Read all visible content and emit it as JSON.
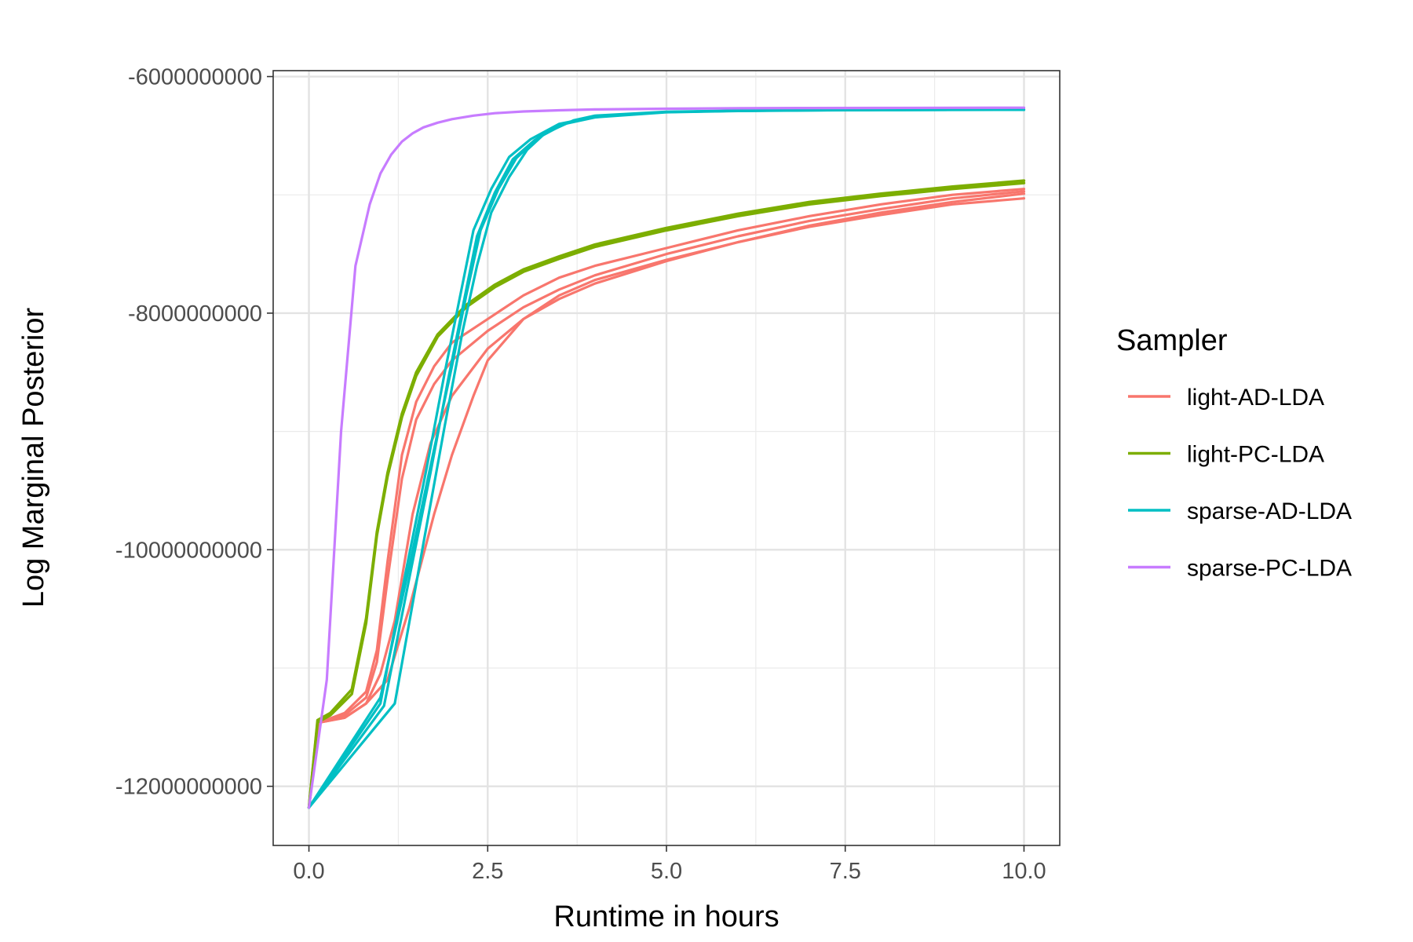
{
  "chart_data": {
    "type": "line",
    "xlabel": "Runtime in hours",
    "ylabel": "Log Marginal Posterior",
    "xlim": [
      -0.5,
      10.5
    ],
    "ylim": [
      -12500000000,
      -5950000000
    ],
    "x_ticks": [
      0.0,
      2.5,
      5.0,
      7.5,
      10.0
    ],
    "x_tick_labels": [
      "0.0",
      "2.5",
      "5.0",
      "7.5",
      "10.0"
    ],
    "y_ticks": [
      -12000000000,
      -10000000000,
      -8000000000,
      -6000000000
    ],
    "y_tick_labels": [
      "-12000000000",
      "-10000000000",
      "-8000000000",
      "-6000000000"
    ],
    "grid": true,
    "legend": {
      "title": "Sampler",
      "position": "right"
    },
    "series": [
      {
        "name": "light-AD-LDA",
        "color": "#F8766D",
        "runs": [
          {
            "x": [
              0,
              0.15,
              0.5,
              0.8,
              0.95,
              1.1,
              1.3,
              1.5,
              1.75,
              2.0,
              2.5,
              3.0,
              3.5,
              4.0,
              5.0,
              6.0,
              7.0,
              8.0,
              9.0,
              10.0
            ],
            "y": [
              -12180000000,
              -11460000000,
              -11380000000,
              -11200000000,
              -10850000000,
              -10100000000,
              -9200000000,
              -8750000000,
              -8450000000,
              -8250000000,
              -8050000000,
              -7850000000,
              -7700000000,
              -7600000000,
              -7450000000,
              -7300000000,
              -7180000000,
              -7080000000,
              -7000000000,
              -6950000000
            ]
          },
          {
            "x": [
              0,
              0.15,
              0.5,
              0.8,
              0.95,
              1.1,
              1.3,
              1.5,
              1.75,
              2.0,
              2.5,
              3.0,
              3.5,
              4.0,
              5.0,
              6.0,
              7.0,
              8.0,
              9.0,
              10.0
            ],
            "y": [
              -12180000000,
              -11460000000,
              -11400000000,
              -11250000000,
              -10950000000,
              -10250000000,
              -9400000000,
              -8900000000,
              -8600000000,
              -8400000000,
              -8150000000,
              -7950000000,
              -7800000000,
              -7680000000,
              -7500000000,
              -7350000000,
              -7220000000,
              -7120000000,
              -7030000000,
              -6970000000
            ]
          },
          {
            "x": [
              0,
              0.15,
              0.5,
              0.8,
              1.0,
              1.2,
              1.45,
              1.7,
              2.0,
              2.5,
              3.0,
              3.5,
              4.0,
              5.0,
              6.0,
              7.0,
              8.0,
              9.0,
              10.0
            ],
            "y": [
              -12180000000,
              -11460000000,
              -11420000000,
              -11300000000,
              -11050000000,
              -10600000000,
              -9700000000,
              -9100000000,
              -8700000000,
              -8300000000,
              -8050000000,
              -7880000000,
              -7750000000,
              -7560000000,
              -7400000000,
              -7260000000,
              -7150000000,
              -7060000000,
              -6990000000
            ]
          },
          {
            "x": [
              0,
              0.15,
              0.5,
              0.8,
              1.1,
              1.4,
              1.75,
              2.0,
              2.3,
              2.5,
              3.0,
              3.5,
              4.0,
              5.0,
              6.0,
              7.0,
              8.0,
              9.0,
              10.0
            ],
            "y": [
              -12180000000,
              -11460000000,
              -11420000000,
              -11300000000,
              -11100000000,
              -10500000000,
              -9700000000,
              -9200000000,
              -8700000000,
              -8400000000,
              -8050000000,
              -7850000000,
              -7720000000,
              -7550000000,
              -7400000000,
              -7270000000,
              -7170000000,
              -7080000000,
              -7030000000
            ]
          }
        ]
      },
      {
        "name": "light-PC-LDA",
        "color": "#7CAE00",
        "runs": [
          {
            "x": [
              0,
              0.12,
              0.3,
              0.6,
              0.8,
              0.95,
              1.1,
              1.3,
              1.5,
              1.8,
              2.2,
              2.6,
              3.0,
              3.5,
              4.0,
              5.0,
              6.0,
              7.0,
              8.0,
              9.0,
              10.0
            ],
            "y": [
              -12180000000,
              -11440000000,
              -11380000000,
              -11180000000,
              -10580000000,
              -9850000000,
              -9350000000,
              -8850000000,
              -8500000000,
              -8180000000,
              -7930000000,
              -7760000000,
              -7630000000,
              -7520000000,
              -7420000000,
              -7280000000,
              -7160000000,
              -7060000000,
              -6990000000,
              -6930000000,
              -6880000000
            ]
          },
          {
            "x": [
              0,
              0.12,
              0.3,
              0.6,
              0.8,
              0.95,
              1.1,
              1.3,
              1.5,
              1.8,
              2.2,
              2.6,
              3.0,
              3.5,
              4.0,
              5.0,
              6.0,
              7.0,
              8.0,
              9.0,
              10.0
            ],
            "y": [
              -12180000000,
              -11460000000,
              -11400000000,
              -11220000000,
              -10620000000,
              -9880000000,
              -9380000000,
              -8880000000,
              -8530000000,
              -8200000000,
              -7950000000,
              -7780000000,
              -7650000000,
              -7540000000,
              -7440000000,
              -7300000000,
              -7180000000,
              -7080000000,
              -7010000000,
              -6950000000,
              -6900000000
            ]
          }
        ]
      },
      {
        "name": "sparse-AD-LDA",
        "color": "#00BFC4",
        "runs": [
          {
            "x": [
              0,
              1.0,
              1.35,
              1.65,
              1.9,
              2.1,
              2.3,
              2.55,
              2.8,
              3.1,
              3.5,
              4.0,
              5.0,
              6.0,
              7.0,
              8.0,
              9.0,
              10.0
            ],
            "y": [
              -12180000000,
              -11300000000,
              -10200000000,
              -9300000000,
              -8500000000,
              -7900000000,
              -7300000000,
              -6950000000,
              -6680000000,
              -6530000000,
              -6400000000,
              -6340000000,
              -6300000000,
              -6290000000,
              -6285000000,
              -6282000000,
              -6281000000,
              -6280000000
            ]
          },
          {
            "x": [
              0,
              1.05,
              1.4,
              1.7,
              1.95,
              2.15,
              2.35,
              2.6,
              2.85,
              3.15,
              3.5,
              4.0,
              5.0,
              6.0,
              7.0,
              8.0,
              9.0,
              10.0
            ],
            "y": [
              -12180000000,
              -11320000000,
              -10250000000,
              -9350000000,
              -8550000000,
              -7950000000,
              -7350000000,
              -6980000000,
              -6700000000,
              -6540000000,
              -6410000000,
              -6345000000,
              -6302000000,
              -6291000000,
              -6286000000,
              -6283000000,
              -6282000000,
              -6281000000
            ]
          },
          {
            "x": [
              0,
              1.0,
              1.4,
              1.75,
              2.0,
              2.2,
              2.4,
              2.65,
              2.9,
              3.2,
              3.6,
              4.0,
              5.0,
              6.0,
              7.0,
              8.0,
              9.0,
              10.0
            ],
            "y": [
              -12180000000,
              -11250000000,
              -10150000000,
              -9150000000,
              -8450000000,
              -7850000000,
              -7300000000,
              -6950000000,
              -6690000000,
              -6520000000,
              -6390000000,
              -6340000000,
              -6300000000,
              -6290000000,
              -6285000000,
              -6282000000,
              -6281000000,
              -6280000000
            ]
          },
          {
            "x": [
              0,
              1.2,
              1.6,
              1.9,
              2.15,
              2.35,
              2.55,
              2.8,
              3.05,
              3.3,
              3.7,
              4.0,
              5.0,
              6.0,
              7.0,
              8.0,
              9.0,
              10.0
            ],
            "y": [
              -12180000000,
              -11300000000,
              -9950000000,
              -8950000000,
              -8150000000,
              -7600000000,
              -7150000000,
              -6850000000,
              -6620000000,
              -6480000000,
              -6370000000,
              -6330000000,
              -6298000000,
              -6288000000,
              -6284000000,
              -6282000000,
              -6281000000,
              -6280000000
            ]
          }
        ]
      },
      {
        "name": "sparse-PC-LDA",
        "color": "#C77CFF",
        "runs": [
          {
            "x": [
              0,
              0.25,
              0.45,
              0.65,
              0.85,
              1.0,
              1.15,
              1.3,
              1.45,
              1.6,
              1.8,
              2.0,
              2.3,
              2.6,
              3.0,
              3.5,
              4.0,
              5.0,
              6.0,
              7.0,
              8.0,
              9.0,
              10.0
            ],
            "y": [
              -12180000000,
              -11100000000,
              -9000000000,
              -7600000000,
              -7080000000,
              -6820000000,
              -6660000000,
              -6550000000,
              -6480000000,
              -6430000000,
              -6390000000,
              -6360000000,
              -6330000000,
              -6310000000,
              -6295000000,
              -6285000000,
              -6278000000,
              -6272000000,
              -6268000000,
              -6266000000,
              -6265000000,
              -6264000000,
              -6263000000
            ]
          }
        ]
      }
    ]
  }
}
